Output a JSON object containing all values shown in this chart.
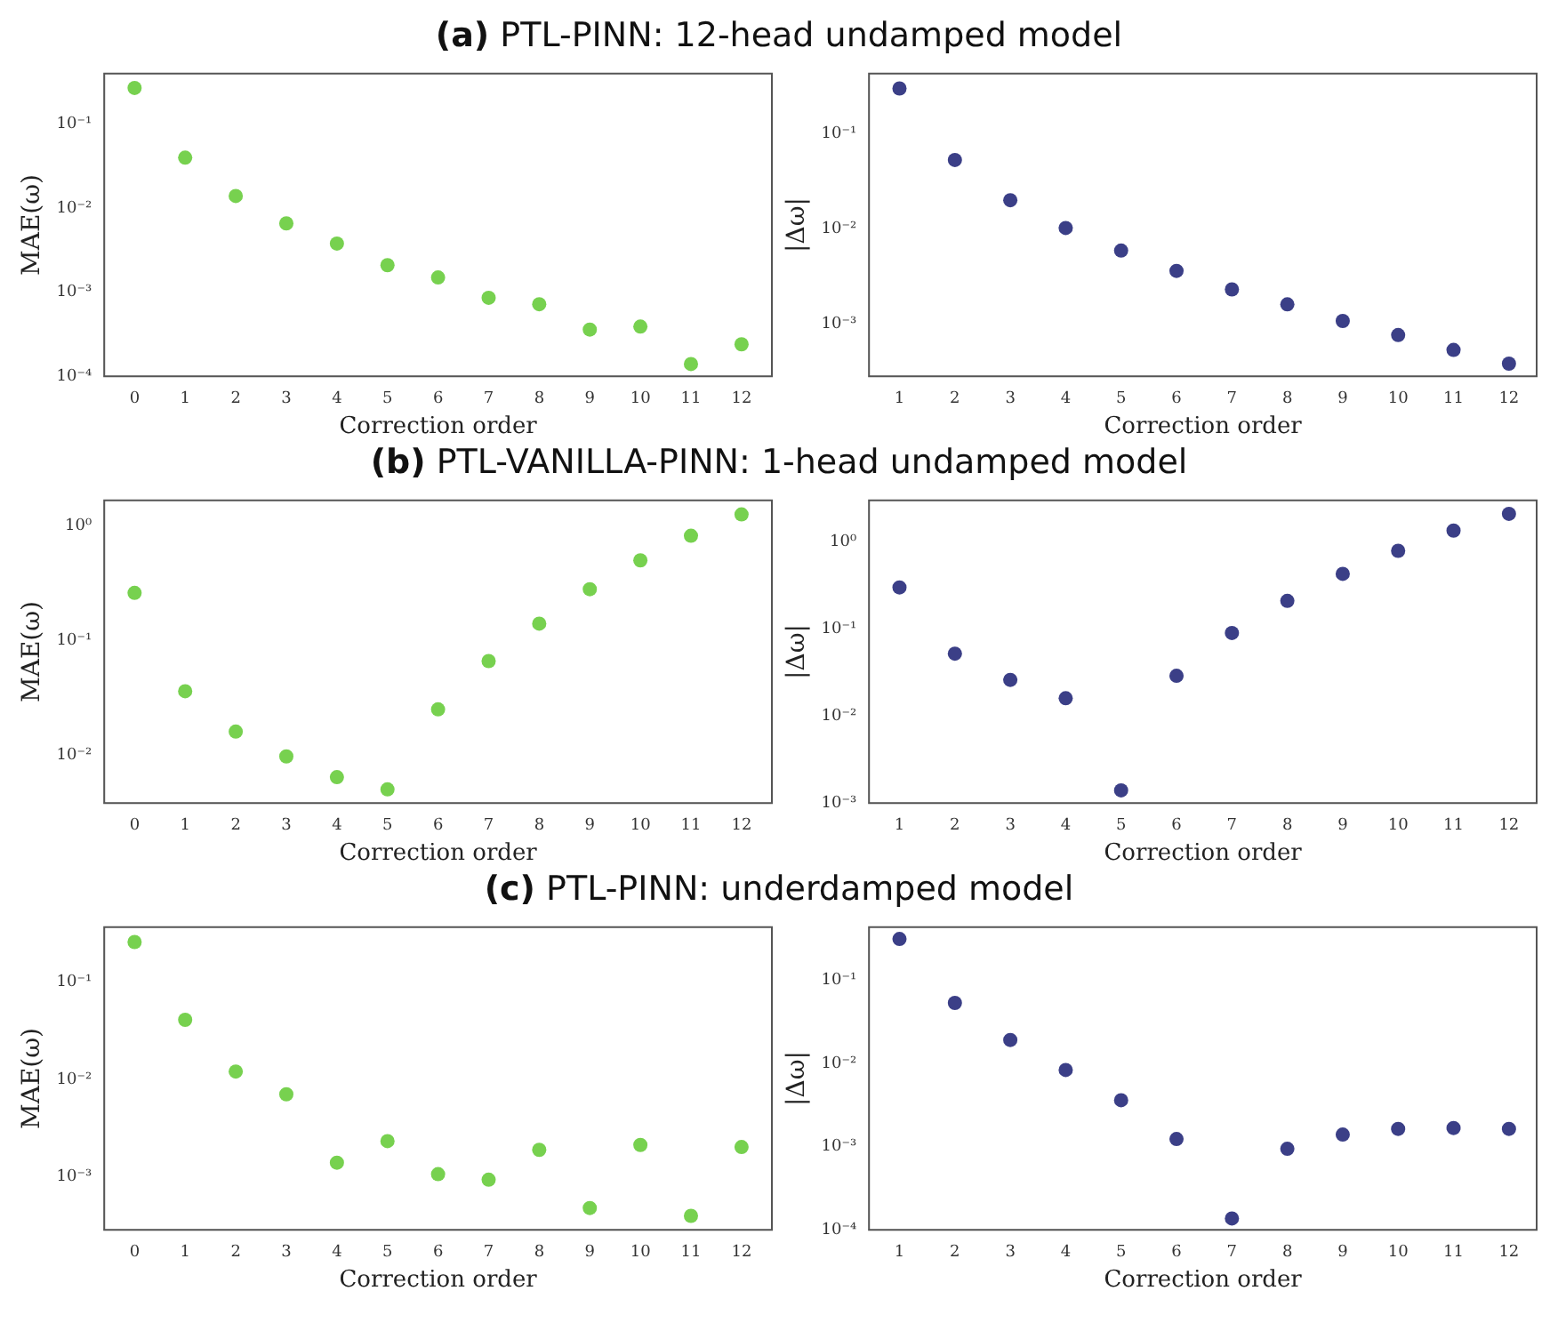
{
  "chart_data": [
    {
      "type": "scatter",
      "title": "(a) PTL-PINN: 12-head undamped model",
      "xlabel": "Correction order",
      "ylabel": "MAE(ω)",
      "x": [
        0,
        1,
        2,
        3,
        4,
        5,
        6,
        7,
        8,
        9,
        10,
        11,
        12
      ],
      "xlim": [
        -0.6,
        12.6
      ],
      "xticks": [
        0,
        1,
        2,
        3,
        4,
        5,
        6,
        7,
        8,
        9,
        10,
        11,
        12
      ],
      "log": "y",
      "grid": false,
      "legend": false,
      "marker": "circle",
      "ylim": [
        0.0001,
        0.4
      ],
      "yticks": [
        {
          "value": 0.0001,
          "label": "10⁻⁴"
        },
        {
          "value": 0.001,
          "label": "10⁻³"
        },
        {
          "value": 0.01,
          "label": "10⁻²"
        },
        {
          "value": 0.1,
          "label": "10⁻¹"
        }
      ],
      "series": [
        {
          "color": "#77d14f",
          "values": [
            0.27,
            0.04,
            0.014,
            0.0066,
            0.0038,
            0.0021,
            0.0015,
            0.00086,
            0.00072,
            0.00036,
            0.00039,
            0.00014,
            0.00024
          ]
        }
      ]
    },
    {
      "type": "scatter",
      "xlabel": "Correction order",
      "ylabel": "|Δω|",
      "x": [
        1,
        2,
        3,
        4,
        5,
        6,
        7,
        8,
        9,
        10,
        11,
        12
      ],
      "xlim": [
        0.45,
        12.5
      ],
      "xticks": [
        1,
        2,
        3,
        4,
        5,
        6,
        7,
        8,
        9,
        10,
        11,
        12
      ],
      "log": "y",
      "grid": false,
      "legend": false,
      "marker": "circle",
      "ylim": [
        0.00028,
        0.43
      ],
      "yticks": [
        {
          "value": 0.001,
          "label": "10⁻³"
        },
        {
          "value": 0.01,
          "label": "10⁻²"
        },
        {
          "value": 0.1,
          "label": "10⁻¹"
        }
      ],
      "series": [
        {
          "color": "#3b3f87",
          "values": [
            0.3,
            0.053,
            0.02,
            0.0102,
            0.0059,
            0.0036,
            0.0023,
            0.0016,
            0.00107,
            0.00076,
            0.00053,
            0.00038
          ]
        }
      ]
    },
    {
      "type": "scatter",
      "title": "(b) PTL-VANILLA-PINN: 1-head undamped model",
      "xlabel": "Correction order",
      "ylabel": "MAE(ω)",
      "x": [
        0,
        1,
        2,
        3,
        4,
        5,
        6,
        7,
        8,
        9,
        10,
        11,
        12
      ],
      "xlim": [
        -0.6,
        12.6
      ],
      "xticks": [
        0,
        1,
        2,
        3,
        4,
        5,
        6,
        7,
        8,
        9,
        10,
        11,
        12
      ],
      "log": "y",
      "grid": false,
      "legend": false,
      "marker": "circle",
      "ylim": [
        0.0038,
        1.67
      ],
      "yticks": [
        {
          "value": 0.01,
          "label": "10⁻²"
        },
        {
          "value": 0.1,
          "label": "10⁻¹"
        },
        {
          "value": 1,
          "label": "10⁰"
        }
      ],
      "series": [
        {
          "color": "#77d14f",
          "values": [
            0.26,
            0.036,
            0.016,
            0.0097,
            0.0064,
            0.005,
            0.025,
            0.066,
            0.14,
            0.28,
            0.5,
            0.82,
            1.26
          ]
        }
      ]
    },
    {
      "type": "scatter",
      "xlabel": "Correction order",
      "ylabel": "|Δω|",
      "x": [
        1,
        2,
        3,
        4,
        5,
        6,
        7,
        8,
        9,
        10,
        11,
        12
      ],
      "xlim": [
        0.45,
        12.5
      ],
      "xticks": [
        1,
        2,
        3,
        4,
        5,
        6,
        7,
        8,
        9,
        10,
        11,
        12
      ],
      "log": "y",
      "grid": false,
      "legend": false,
      "marker": "circle",
      "ylim": [
        0.001,
        3.0
      ],
      "yticks": [
        {
          "value": 0.001,
          "label": "10⁻³"
        },
        {
          "value": 0.01,
          "label": "10⁻²"
        },
        {
          "value": 0.1,
          "label": "10⁻¹"
        },
        {
          "value": 1,
          "label": "10⁰"
        }
      ],
      "series": [
        {
          "color": "#3b3f87",
          "values": [
            0.3,
            0.052,
            0.026,
            0.016,
            0.0014,
            0.029,
            0.09,
            0.21,
            0.43,
            0.79,
            1.35,
            2.1
          ]
        }
      ]
    },
    {
      "type": "scatter",
      "title": "(c) PTL-PINN: underdamped model",
      "xlabel": "Correction order",
      "ylabel": "MAE(ω)",
      "x": [
        0,
        1,
        2,
        3,
        4,
        5,
        6,
        7,
        8,
        9,
        10,
        11,
        12
      ],
      "xlim": [
        -0.6,
        12.6
      ],
      "xticks": [
        0,
        1,
        2,
        3,
        4,
        5,
        6,
        7,
        8,
        9,
        10,
        11,
        12
      ],
      "log": "y",
      "grid": false,
      "legend": false,
      "marker": "circle",
      "ylim": [
        0.00028,
        0.37
      ],
      "yticks": [
        {
          "value": 0.001,
          "label": "10⁻³"
        },
        {
          "value": 0.01,
          "label": "10⁻²"
        },
        {
          "value": 0.1,
          "label": "10⁻¹"
        }
      ],
      "series": [
        {
          "color": "#77d14f",
          "values": [
            0.26,
            0.041,
            0.012,
            0.007,
            0.00138,
            0.0023,
            0.00105,
            0.00092,
            0.00187,
            0.00047,
            0.0021,
            0.00039,
            0.002
          ]
        }
      ]
    },
    {
      "type": "scatter",
      "xlabel": "Correction order",
      "ylabel": "|Δω|",
      "x": [
        1,
        2,
        3,
        4,
        5,
        6,
        7,
        8,
        9,
        10,
        11,
        12
      ],
      "xlim": [
        0.45,
        12.5
      ],
      "xticks": [
        1,
        2,
        3,
        4,
        5,
        6,
        7,
        8,
        9,
        10,
        11,
        12
      ],
      "log": "y",
      "grid": false,
      "legend": false,
      "marker": "circle",
      "ylim": [
        0.0001,
        0.43
      ],
      "yticks": [
        {
          "value": 0.0001,
          "label": "10⁻⁴"
        },
        {
          "value": 0.001,
          "label": "10⁻³"
        },
        {
          "value": 0.01,
          "label": "10⁻²"
        },
        {
          "value": 0.1,
          "label": "10⁻¹"
        }
      ],
      "series": [
        {
          "color": "#3b3f87",
          "values": [
            0.31,
            0.053,
            0.019,
            0.0083,
            0.0036,
            0.00123,
            0.000137,
            0.00094,
            0.00139,
            0.00163,
            0.00167,
            0.00163
          ]
        }
      ]
    }
  ]
}
